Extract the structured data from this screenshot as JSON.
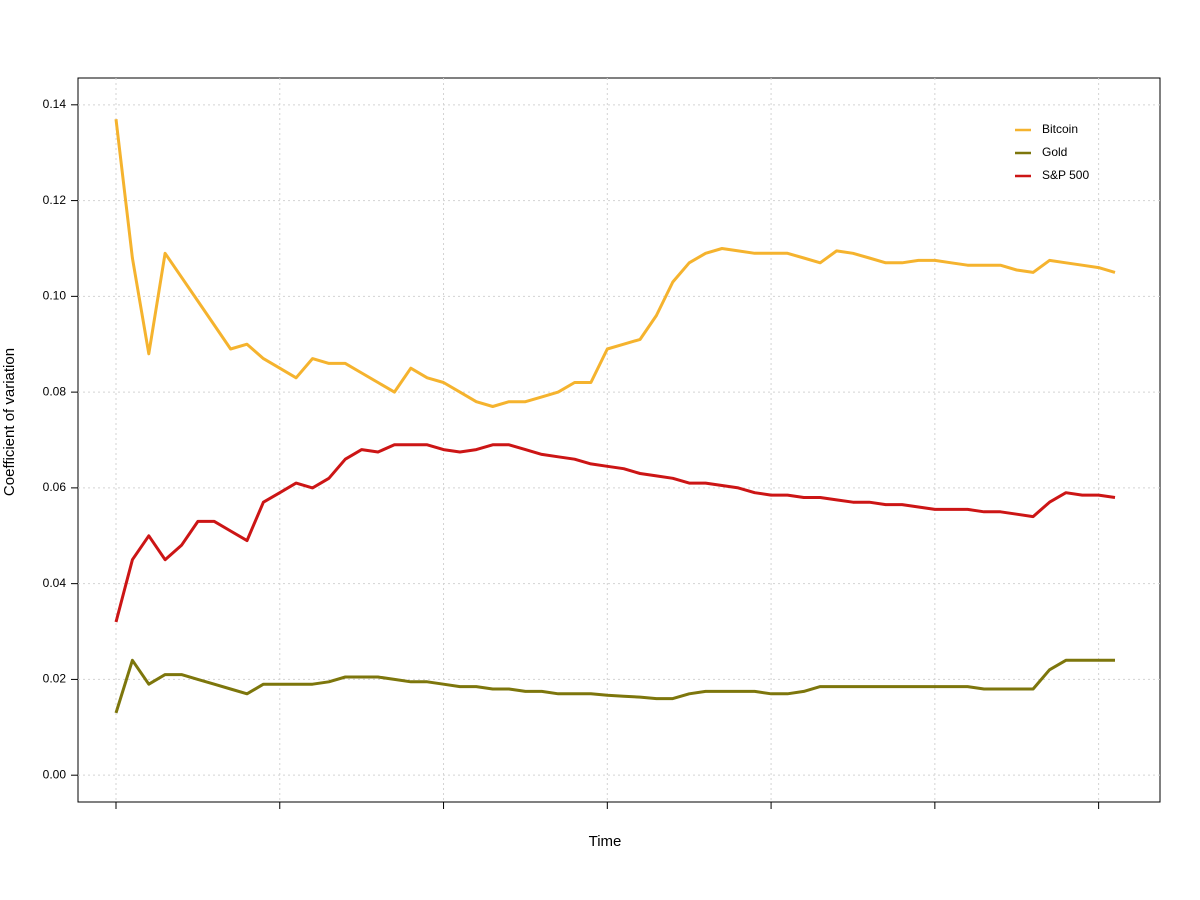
{
  "chart_data": {
    "type": "line",
    "x_label": "Time",
    "y_label": "Coefficient of variation",
    "categories": [
      null,
      null,
      null,
      null,
      null,
      null,
      null,
      null,
      null,
      null,
      null,
      null,
      null,
      null,
      null,
      null,
      null,
      null,
      null,
      null,
      null,
      null,
      null,
      null,
      null,
      null,
      null,
      null,
      null,
      null,
      null,
      null,
      null,
      null,
      null,
      null,
      null,
      null,
      null,
      null,
      null,
      null,
      null,
      null,
      null,
      null,
      null,
      null,
      null,
      null,
      null,
      null,
      null,
      null,
      null,
      null,
      null,
      null,
      null,
      null,
      null,
      null
    ],
    "series": [
      {
        "name": "Bitcoin",
        "color": "#f5b32e",
        "values": [
          0.137,
          0.108,
          0.088,
          0.109,
          0.104,
          0.099,
          0.094,
          0.089,
          0.09,
          0.087,
          0.085,
          0.083,
          0.087,
          0.086,
          0.086,
          0.084,
          0.082,
          0.08,
          0.085,
          0.083,
          0.082,
          0.08,
          0.078,
          0.077,
          0.078,
          0.078,
          0.079,
          0.08,
          0.082,
          0.082,
          0.089,
          0.09,
          0.091,
          0.096,
          0.103,
          0.107,
          0.109,
          0.11,
          0.1095,
          0.109,
          0.109,
          0.109,
          0.108,
          0.107,
          0.1095,
          0.109,
          0.108,
          0.107,
          0.107,
          0.1075,
          0.1075,
          0.107,
          0.1065,
          0.1065,
          0.1065,
          0.1055,
          0.105,
          0.1075,
          0.107,
          0.1065,
          0.106,
          0.105
        ]
      },
      {
        "name": "Gold",
        "color": "#7d760c",
        "values": [
          0.013,
          0.024,
          0.019,
          0.021,
          0.021,
          0.02,
          0.019,
          0.018,
          0.017,
          0.019,
          0.019,
          0.019,
          0.019,
          0.0195,
          0.0205,
          0.0205,
          0.0205,
          0.02,
          0.0195,
          0.0195,
          0.019,
          0.0185,
          0.0185,
          0.018,
          0.018,
          0.0175,
          0.0175,
          0.017,
          0.017,
          0.017,
          0.0167,
          0.0165,
          0.0163,
          0.016,
          0.016,
          0.017,
          0.0175,
          0.0175,
          0.0175,
          0.0175,
          0.017,
          0.017,
          0.0175,
          0.0185,
          0.0185,
          0.0185,
          0.0185,
          0.0185,
          0.0185,
          0.0185,
          0.0185,
          0.0185,
          0.0185,
          0.018,
          0.018,
          0.018,
          0.018,
          0.022,
          0.024,
          0.024,
          0.024,
          0.024
        ]
      },
      {
        "name": "S&P 500",
        "color": "#cc1515",
        "values": [
          0.032,
          0.045,
          0.05,
          0.045,
          0.048,
          0.053,
          0.053,
          0.051,
          0.049,
          0.057,
          0.059,
          0.061,
          0.06,
          0.062,
          0.066,
          0.068,
          0.0675,
          0.069,
          0.069,
          0.069,
          0.068,
          0.0675,
          0.068,
          0.069,
          0.069,
          0.068,
          0.067,
          0.0665,
          0.066,
          0.065,
          0.0645,
          0.064,
          0.063,
          0.0625,
          0.062,
          0.061,
          0.061,
          0.0605,
          0.06,
          0.059,
          0.0585,
          0.0585,
          0.058,
          0.058,
          0.0575,
          0.057,
          0.057,
          0.0565,
          0.0565,
          0.056,
          0.0555,
          0.0555,
          0.0555,
          0.055,
          0.055,
          0.0545,
          0.054,
          0.057,
          0.059,
          0.0585,
          0.0585,
          0.058
        ]
      }
    ],
    "ylim": [
      -0.0056,
      0.1456
    ],
    "yticks": [
      {
        "value": 0,
        "label": "0.00"
      },
      0.02,
      0.04,
      0.06,
      0.08,
      {
        "value": 0.1,
        "label": "0.10"
      },
      0.12,
      0.14
    ],
    "grid": true,
    "legend": "top-right"
  }
}
